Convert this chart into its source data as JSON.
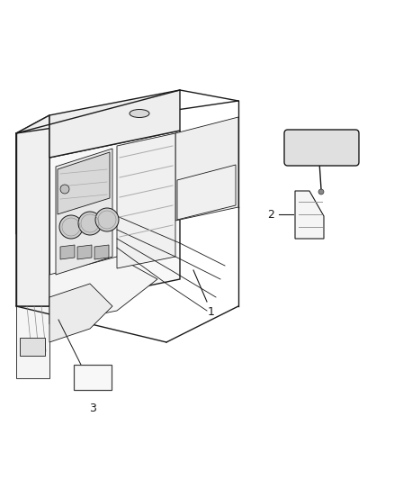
{
  "bg_color": "#ffffff",
  "line_color": "#1a1a1a",
  "label_color": "#1a1a1a",
  "fig_width": 4.38,
  "fig_height": 5.33,
  "dpi": 100
}
